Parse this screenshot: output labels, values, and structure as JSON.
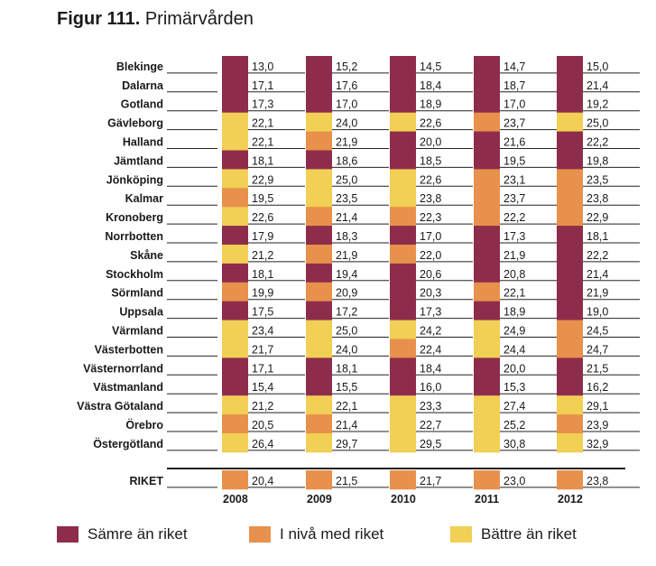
{
  "title": {
    "prefix": "Figur 111.",
    "text": "Primärvården"
  },
  "colors": {
    "worse": "#8e2d4b",
    "same": "#e8914c",
    "better": "#f2cf55"
  },
  "legend": [
    {
      "label": "Sämre än riket",
      "status": "worse"
    },
    {
      "label": "I nivå med riket",
      "status": "same"
    },
    {
      "label": "Bättre än riket",
      "status": "better"
    }
  ],
  "chart_data": {
    "type": "table",
    "title": "Figur 111. Primärvården",
    "years": [
      "2008",
      "2009",
      "2010",
      "2011",
      "2012"
    ],
    "status_codes": {
      "W": "Sämre än riket",
      "S": "I nivå med riket",
      "B": "Bättre än riket"
    },
    "rows": [
      {
        "region": "Blekinge",
        "values": [
          "13,0",
          "15,2",
          "14,5",
          "14,7",
          "15,0"
        ],
        "status": [
          "W",
          "W",
          "W",
          "W",
          "W"
        ]
      },
      {
        "region": "Dalarna",
        "values": [
          "17,1",
          "17,6",
          "18,4",
          "18,7",
          "21,4"
        ],
        "status": [
          "W",
          "W",
          "W",
          "W",
          "W"
        ]
      },
      {
        "region": "Gotland",
        "values": [
          "17,3",
          "17,0",
          "18,9",
          "17,0",
          "19,2"
        ],
        "status": [
          "W",
          "W",
          "W",
          "W",
          "W"
        ]
      },
      {
        "region": "Gävleborg",
        "values": [
          "22,1",
          "24,0",
          "22,6",
          "23,7",
          "25,0"
        ],
        "status": [
          "B",
          "B",
          "B",
          "S",
          "B"
        ]
      },
      {
        "region": "Halland",
        "values": [
          "22,1",
          "21,9",
          "20,0",
          "21,6",
          "22,2"
        ],
        "status": [
          "B",
          "S",
          "W",
          "W",
          "W"
        ]
      },
      {
        "region": "Jämtland",
        "values": [
          "18,1",
          "18,6",
          "18,5",
          "19,5",
          "19,8"
        ],
        "status": [
          "W",
          "W",
          "W",
          "W",
          "W"
        ]
      },
      {
        "region": "Jönköping",
        "values": [
          "22,9",
          "25,0",
          "22,6",
          "23,1",
          "23,5"
        ],
        "status": [
          "B",
          "B",
          "B",
          "S",
          "S"
        ]
      },
      {
        "region": "Kalmar",
        "values": [
          "19,5",
          "23,5",
          "23,8",
          "23,7",
          "23,8"
        ],
        "status": [
          "S",
          "B",
          "B",
          "S",
          "S"
        ]
      },
      {
        "region": "Kronoberg",
        "values": [
          "22,6",
          "21,4",
          "22,3",
          "22,2",
          "22,9"
        ],
        "status": [
          "B",
          "S",
          "S",
          "S",
          "S"
        ]
      },
      {
        "region": "Norrbotten",
        "values": [
          "17,9",
          "18,3",
          "17,0",
          "17,3",
          "18,1"
        ],
        "status": [
          "W",
          "W",
          "W",
          "W",
          "W"
        ]
      },
      {
        "region": "Skåne",
        "values": [
          "21,2",
          "21,9",
          "22,0",
          "21,9",
          "22,2"
        ],
        "status": [
          "B",
          "S",
          "S",
          "W",
          "W"
        ]
      },
      {
        "region": "Stockholm",
        "values": [
          "18,1",
          "19,4",
          "20,6",
          "20,8",
          "21,4"
        ],
        "status": [
          "W",
          "W",
          "W",
          "W",
          "W"
        ]
      },
      {
        "region": "Sörmland",
        "values": [
          "19,9",
          "20,9",
          "20,3",
          "22,1",
          "21,9"
        ],
        "status": [
          "S",
          "S",
          "W",
          "S",
          "W"
        ]
      },
      {
        "region": "Uppsala",
        "values": [
          "17,5",
          "17,2",
          "17,3",
          "18,9",
          "19,0"
        ],
        "status": [
          "W",
          "W",
          "W",
          "W",
          "W"
        ]
      },
      {
        "region": "Värmland",
        "values": [
          "23,4",
          "25,0",
          "24,2",
          "24,9",
          "24,5"
        ],
        "status": [
          "B",
          "B",
          "B",
          "B",
          "S"
        ]
      },
      {
        "region": "Västerbotten",
        "values": [
          "21,7",
          "24,0",
          "22,4",
          "24,4",
          "24,7"
        ],
        "status": [
          "B",
          "B",
          "S",
          "B",
          "S"
        ]
      },
      {
        "region": "Västernorrland",
        "values": [
          "17,1",
          "18,1",
          "18,4",
          "20,0",
          "21,5"
        ],
        "status": [
          "W",
          "W",
          "W",
          "W",
          "W"
        ]
      },
      {
        "region": "Västmanland",
        "values": [
          "15,4",
          "15,5",
          "16,0",
          "15,3",
          "16,2"
        ],
        "status": [
          "W",
          "W",
          "W",
          "W",
          "W"
        ]
      },
      {
        "region": "Västra Götaland",
        "values": [
          "21,2",
          "22,1",
          "23,3",
          "27,4",
          "29,1"
        ],
        "status": [
          "B",
          "B",
          "B",
          "B",
          "B"
        ]
      },
      {
        "region": "Örebro",
        "values": [
          "20,5",
          "21,4",
          "22,7",
          "25,2",
          "23,9"
        ],
        "status": [
          "S",
          "S",
          "B",
          "B",
          "S"
        ]
      },
      {
        "region": "Östergötland",
        "values": [
          "26,4",
          "29,7",
          "29,5",
          "30,8",
          "32,9"
        ],
        "status": [
          "B",
          "B",
          "B",
          "B",
          "B"
        ]
      }
    ],
    "total": {
      "region": "RIKET",
      "values": [
        "20,4",
        "21,5",
        "21,7",
        "23,0",
        "23,8"
      ],
      "status": [
        "S",
        "S",
        "S",
        "S",
        "S"
      ]
    }
  }
}
